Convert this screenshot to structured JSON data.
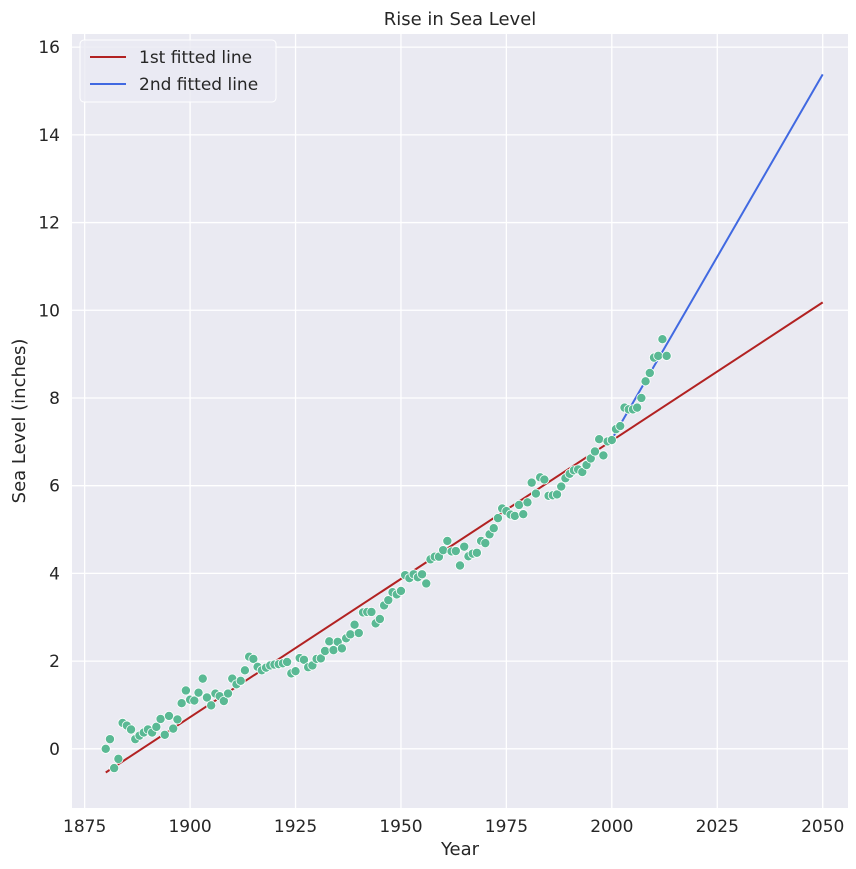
{
  "chart_data": {
    "type": "scatter",
    "title": "Rise in Sea Level",
    "xlabel": "Year",
    "ylabel": "Sea Level (inches)",
    "xlim": [
      1872,
      2056
    ],
    "ylim": [
      -1.35,
      16.3
    ],
    "xticks": [
      1875,
      1900,
      1925,
      1950,
      1975,
      2000,
      2025,
      2050
    ],
    "yticks": [
      0,
      2,
      4,
      6,
      8,
      10,
      12,
      14,
      16
    ],
    "grid": true,
    "legend_position": "top-left",
    "colors": {
      "background": "#eaeaf2",
      "grid": "#ffffff",
      "points": "#5ab994",
      "line1": "#b22222",
      "line2": "#4169e1"
    },
    "scatter": {
      "x": [
        1880,
        1881,
        1882,
        1883,
        1884,
        1885,
        1886,
        1887,
        1888,
        1889,
        1890,
        1891,
        1892,
        1893,
        1894,
        1895,
        1896,
        1897,
        1898,
        1899,
        1900,
        1901,
        1902,
        1903,
        1904,
        1905,
        1906,
        1907,
        1908,
        1909,
        1910,
        1911,
        1912,
        1913,
        1914,
        1915,
        1916,
        1917,
        1918,
        1919,
        1920,
        1921,
        1922,
        1923,
        1924,
        1925,
        1926,
        1927,
        1928,
        1929,
        1930,
        1931,
        1932,
        1933,
        1934,
        1935,
        1936,
        1937,
        1938,
        1939,
        1940,
        1941,
        1942,
        1943,
        1944,
        1945,
        1946,
        1947,
        1948,
        1949,
        1950,
        1951,
        1952,
        1953,
        1954,
        1955,
        1956,
        1957,
        1958,
        1959,
        1960,
        1961,
        1962,
        1963,
        1964,
        1965,
        1966,
        1967,
        1968,
        1969,
        1970,
        1971,
        1972,
        1973,
        1974,
        1975,
        1976,
        1977,
        1978,
        1979,
        1980,
        1981,
        1982,
        1983,
        1984,
        1985,
        1986,
        1987,
        1988,
        1989,
        1990,
        1991,
        1992,
        1993,
        1994,
        1995,
        1996,
        1997,
        1998,
        1999,
        2000,
        2001,
        2002,
        2003,
        2004,
        2005,
        2006,
        2007,
        2008,
        2009,
        2010,
        2011,
        2012,
        2013
      ],
      "y": [
        0.0,
        0.22,
        -0.44,
        -0.23,
        0.59,
        0.53,
        0.44,
        0.22,
        0.3,
        0.37,
        0.44,
        0.37,
        0.5,
        0.68,
        0.32,
        0.75,
        0.46,
        0.67,
        1.04,
        1.33,
        1.12,
        1.1,
        1.28,
        1.6,
        1.17,
        0.99,
        1.26,
        1.2,
        1.09,
        1.26,
        1.6,
        1.47,
        1.55,
        1.79,
        2.1,
        2.05,
        1.87,
        1.79,
        1.85,
        1.9,
        1.92,
        1.93,
        1.95,
        1.98,
        1.72,
        1.77,
        2.07,
        2.03,
        1.86,
        1.9,
        2.05,
        2.06,
        2.23,
        2.45,
        2.25,
        2.44,
        2.29,
        2.52,
        2.61,
        2.83,
        2.64,
        3.11,
        3.12,
        3.12,
        2.86,
        2.96,
        3.27,
        3.39,
        3.57,
        3.52,
        3.6,
        3.96,
        3.89,
        3.98,
        3.91,
        3.98,
        3.77,
        4.32,
        4.38,
        4.38,
        4.53,
        4.74,
        4.5,
        4.51,
        4.18,
        4.61,
        4.39,
        4.45,
        4.47,
        4.74,
        4.69,
        4.89,
        5.03,
        5.26,
        5.48,
        5.42,
        5.34,
        5.31,
        5.56,
        5.35,
        5.62,
        6.07,
        5.82,
        6.19,
        6.14,
        5.77,
        5.78,
        5.8,
        5.98,
        6.17,
        6.27,
        6.35,
        6.37,
        6.31,
        6.47,
        6.62,
        6.78,
        7.06,
        6.69,
        7.01,
        7.04,
        7.29,
        7.36,
        7.78,
        7.74,
        7.74,
        7.78,
        8.0,
        8.38,
        8.57,
        8.92,
        8.96,
        9.34,
        8.96
      ]
    },
    "series": [
      {
        "name": "1st fitted line",
        "x": [
          1880,
          2050
        ],
        "y": [
          -0.54,
          10.18
        ]
      },
      {
        "name": "2nd fitted line",
        "x": [
          2000,
          2050
        ],
        "y": [
          7.06,
          15.38
        ]
      }
    ]
  }
}
